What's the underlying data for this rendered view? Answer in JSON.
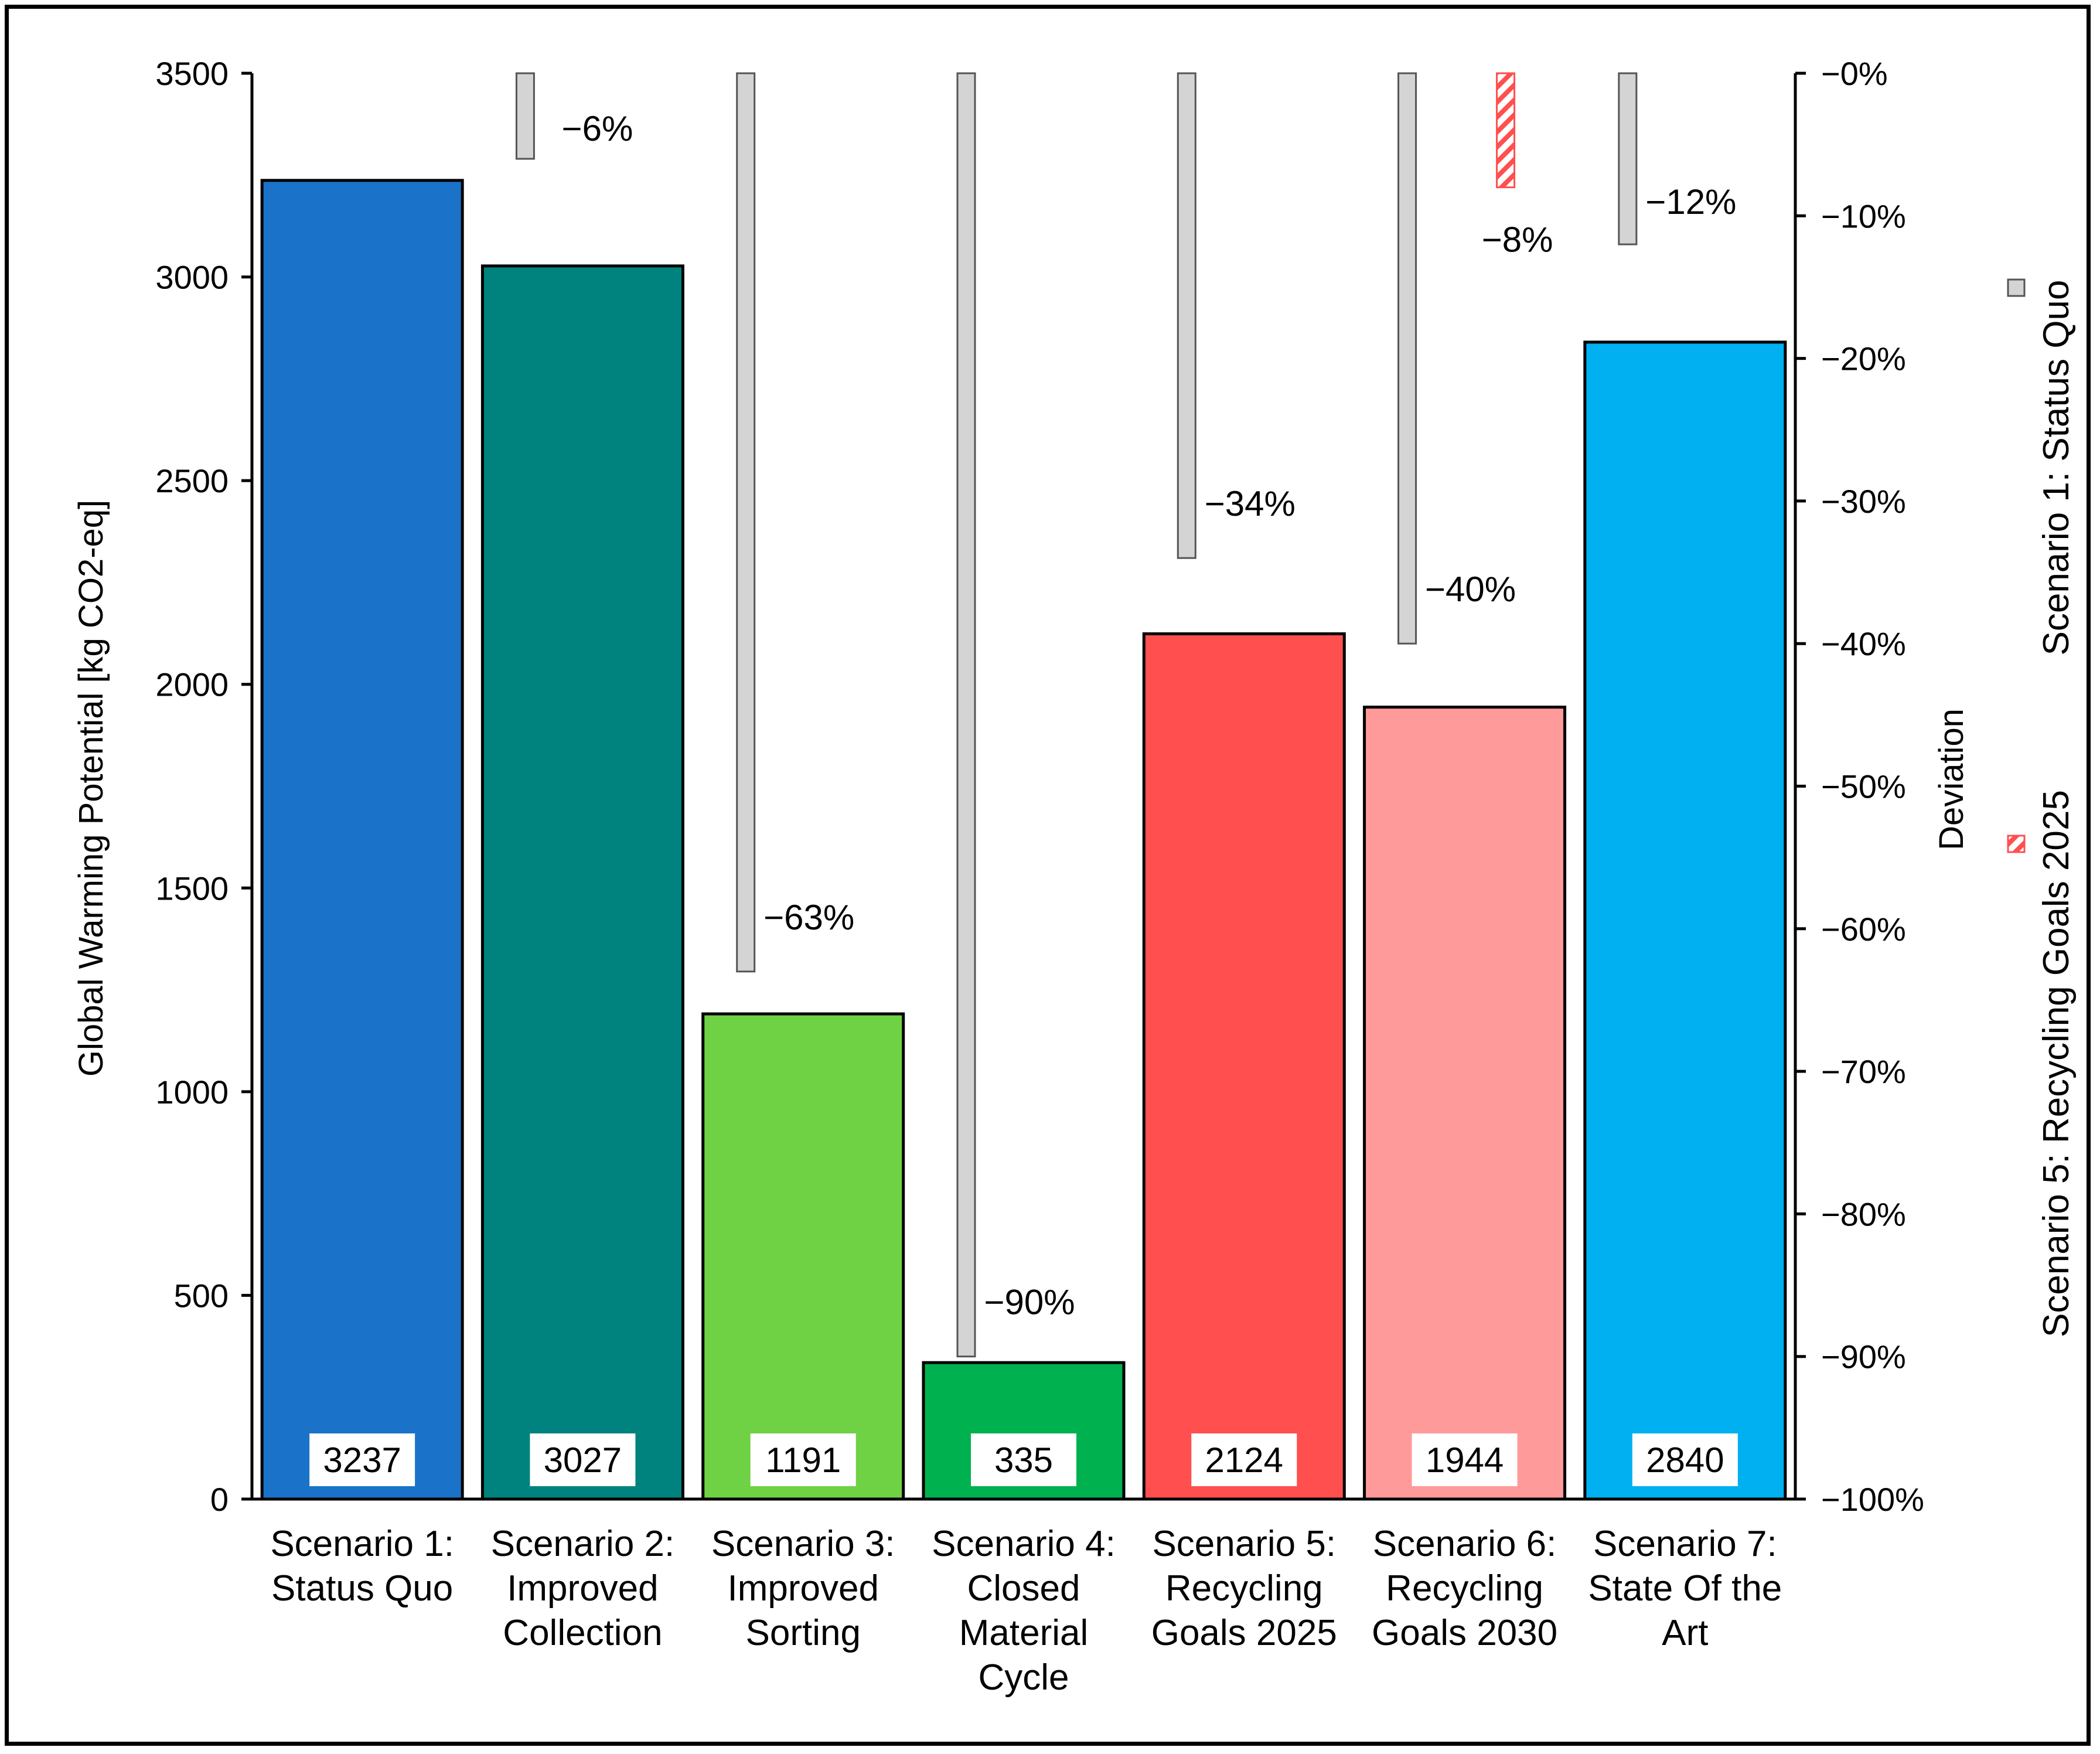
{
  "chart_data": {
    "type": "bar",
    "title": "",
    "xlabel": "",
    "ylabel": "Global Warming Potential [kg CO2-eq]",
    "ylim": [
      0,
      3500
    ],
    "yticks": [
      "0",
      "500",
      "1000",
      "1500",
      "2000",
      "2500",
      "3000",
      "3500"
    ],
    "y2label": "Deviation",
    "y2lim": [
      -100,
      0
    ],
    "y2ticks": [
      "−0%",
      "−10%",
      "−20%",
      "−30%",
      "−40%",
      "−50%",
      "−60%",
      "−70%",
      "−80%",
      "−90%",
      "−100%"
    ],
    "grid": false,
    "categories": [
      [
        "Scenario 1:",
        "Status Quo"
      ],
      [
        "Scenario 2:",
        "Improved",
        "Collection"
      ],
      [
        "Scenario 3:",
        "Improved",
        "Sorting"
      ],
      [
        "Scenario 4:",
        "Closed",
        "Material",
        "Cycle"
      ],
      [
        "Scenario 5:",
        "Recycling",
        "Goals 2025"
      ],
      [
        "Scenario 6:",
        "Recycling",
        "Goals 2030"
      ],
      [
        "Scenario 7:",
        "State Of  the",
        "Art"
      ]
    ],
    "values": [
      3237,
      3027,
      1191,
      335,
      2124,
      1944,
      2840
    ],
    "value_labels": [
      "3237",
      "3027",
      "1191",
      "335",
      "2124",
      "1944",
      "2840"
    ],
    "bar_colors": [
      "#1a73c8",
      "#00837e",
      "#6fd144",
      "#00b14f",
      "#ff4f4f",
      "#ff9a9a",
      "#00b0f0"
    ],
    "series": [
      {
        "name": "Scenario 1: Status Quo",
        "axis": "right",
        "color": "#d4d4d4",
        "pattern": "solid-gray",
        "points": [
          {
            "category_index": 1,
            "value": -6,
            "label": "−6%"
          },
          {
            "category_index": 2,
            "value": -63,
            "label": "−63%"
          },
          {
            "category_index": 3,
            "value": -90,
            "label": "−90%"
          },
          {
            "category_index": 4,
            "value": -34,
            "label": "−34%"
          },
          {
            "category_index": 5,
            "value": -40,
            "label": "−40%"
          },
          {
            "category_index": 6,
            "value": -12,
            "label": "−12%"
          }
        ]
      },
      {
        "name": "Scenario 5: Recycling Goals 2025",
        "axis": "right",
        "color": "#ff4f4f",
        "pattern": "hatched-red",
        "points": [
          {
            "category_index": 5,
            "value": -8,
            "label": "−8%"
          }
        ]
      }
    ],
    "legend": [
      "Scenario 1: Status Quo",
      "Scenario 5: Recycling Goals 2025"
    ],
    "legend_position": "right, rotated vertical"
  }
}
